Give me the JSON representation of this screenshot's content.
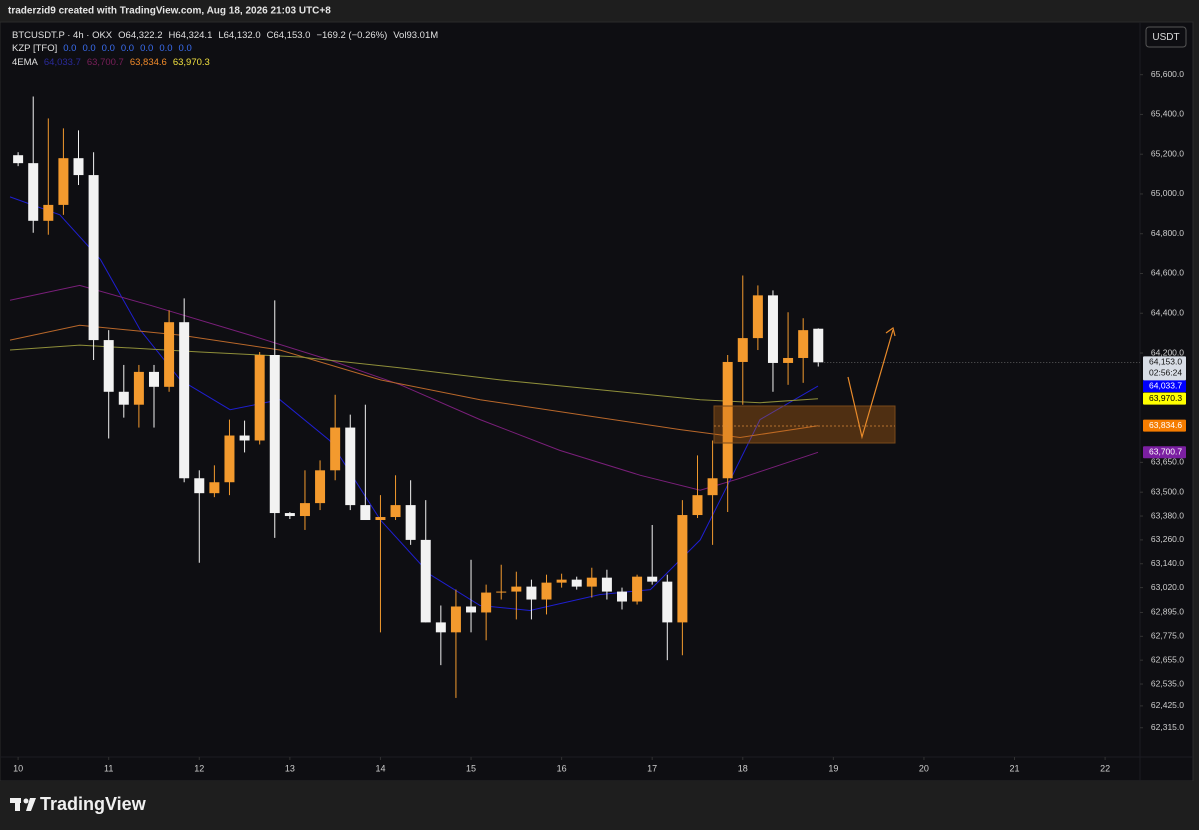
{
  "top_bar": {
    "text": "traderzid9 created with TradingView.com, Aug 18, 2026 21:03 UTC+8"
  },
  "currency_button": "USDT",
  "legend": {
    "symbol": "BTCUSDT.P · 4h · OKX",
    "ohlc": [
      "O64,322.2",
      "H64,324.1",
      "L64,132.0",
      "C64,153.0"
    ],
    "change": "−169.2 (−0.26%)",
    "volume": "Vol93.01M",
    "kzp_label": "KZP [TFO]",
    "kzp_values": [
      "0.0",
      "0.0",
      "0.0",
      "0.0",
      "0.0",
      "0.0",
      "0.0"
    ],
    "ema_label": "4EMA"
  },
  "footer": {
    "brand": "TradingView"
  },
  "chart_data": {
    "type": "candlestick",
    "up_color": "#f39a2e",
    "down_color": "#f2f2f2",
    "xlim": [
      9.8,
      22.33
    ],
    "xticks": [
      10,
      11,
      12,
      13,
      14,
      15,
      16,
      17,
      18,
      19,
      20,
      21,
      22
    ],
    "ylim": [
      62178,
      65865
    ],
    "yticks": [
      {
        "value": 65600,
        "label": "65,600.0"
      },
      {
        "value": 65400,
        "label": "65,400.0"
      },
      {
        "value": 65200,
        "label": "65,200.0"
      },
      {
        "value": 65000,
        "label": "65,000.0"
      },
      {
        "value": 64800,
        "label": "64,800.0"
      },
      {
        "value": 64600,
        "label": "64,600.0"
      },
      {
        "value": 64400,
        "label": "64,400.0"
      },
      {
        "value": 64200,
        "label": "64,200.0"
      },
      {
        "value": 63650,
        "label": "63,650.0"
      },
      {
        "value": 63500,
        "label": "63,500.0"
      },
      {
        "value": 63380,
        "label": "63,380.0"
      },
      {
        "value": 63260,
        "label": "63,260.0"
      },
      {
        "value": 63140,
        "label": "63,140.0"
      },
      {
        "value": 63020,
        "label": "63,020.0"
      },
      {
        "value": 62895,
        "label": "62,895.0"
      },
      {
        "value": 62775,
        "label": "62,775.0"
      },
      {
        "value": 62655,
        "label": "62,655.0"
      },
      {
        "value": 62535,
        "label": "62,535.0"
      },
      {
        "value": 62425,
        "label": "62,425.0"
      },
      {
        "value": 62315,
        "label": "62,315.0"
      }
    ],
    "grid": false,
    "x": [
      10,
      10.1667,
      10.3333,
      10.5,
      10.6667,
      10.8333,
      11,
      11.1667,
      11.3333,
      11.5,
      11.6667,
      11.8333,
      12,
      12.1667,
      12.3333,
      12.5,
      12.6667,
      12.8333,
      13,
      13.1667,
      13.3333,
      13.5,
      13.6667,
      13.8333,
      14,
      14.1667,
      14.3333,
      14.5,
      14.6667,
      14.8333,
      15,
      15.1667,
      15.3333,
      15.5,
      15.6667,
      15.8333,
      16,
      16.1667,
      16.3333,
      16.5,
      16.6667,
      16.8333,
      17,
      17.1667,
      17.3333,
      17.5,
      17.6667,
      17.8333,
      18,
      18.1667,
      18.3333,
      18.5,
      18.6667,
      18.8333
    ],
    "open": [
      65195,
      65155,
      64865,
      64945,
      65180,
      65095,
      64265,
      64005,
      63940,
      64105,
      64030,
      64355,
      63570,
      63495,
      63550,
      63785,
      63760,
      64190,
      63395,
      63380,
      63445,
      63610,
      63825,
      63435,
      63360,
      63375,
      63435,
      63260,
      62845,
      62795,
      62925,
      62895,
      62995,
      63000,
      63025,
      62960,
      63045,
      63060,
      63025,
      63070,
      63000,
      62950,
      63075,
      63050,
      62845,
      63385,
      63485,
      63570,
      64155,
      64275,
      64490,
      64150,
      64175,
      64322.2
    ],
    "high": [
      65210,
      65490,
      65380,
      65330,
      65320,
      65210,
      64315,
      64140,
      64140,
      64140,
      64415,
      64475,
      63610,
      63635,
      63865,
      63860,
      64205,
      64465,
      63400,
      63610,
      63660,
      63990,
      63890,
      63940,
      63485,
      63585,
      63560,
      63460,
      62930,
      63010,
      63160,
      63035,
      63135,
      63100,
      63060,
      63085,
      63090,
      63075,
      63120,
      63110,
      63020,
      63085,
      63335,
      63085,
      63460,
      63685,
      63760,
      64190,
      64590,
      64540,
      64515,
      64405,
      64375,
      64324.1
    ],
    "low": [
      65140,
      64805,
      64795,
      64895,
      65045,
      64165,
      63770,
      63875,
      63825,
      63825,
      64005,
      63550,
      63145,
      63475,
      63485,
      63700,
      63740,
      63270,
      63365,
      63310,
      63410,
      63560,
      63410,
      63360,
      62795,
      63360,
      63235,
      62845,
      62630,
      62465,
      62795,
      62755,
      62960,
      62860,
      62860,
      62885,
      63020,
      63010,
      62970,
      62960,
      62910,
      62935,
      63035,
      62655,
      62680,
      63370,
      63235,
      63400,
      63940,
      64215,
      64005,
      64040,
      64050,
      64132.0
    ],
    "close": [
      65155,
      64865,
      64945,
      65180,
      65095,
      64265,
      64005,
      63940,
      64105,
      64030,
      64355,
      63570,
      63495,
      63550,
      63785,
      63760,
      64190,
      63395,
      63380,
      63445,
      63610,
      63825,
      63435,
      63360,
      63375,
      63435,
      63260,
      62845,
      62795,
      62925,
      62895,
      62995,
      63000,
      63025,
      62960,
      63045,
      63060,
      63025,
      63070,
      63000,
      62950,
      63075,
      63050,
      62845,
      63385,
      63485,
      63570,
      64155,
      64275,
      64490,
      64150,
      64175,
      64315,
      64153.0
    ],
    "price_tag": {
      "value": 64153.0,
      "label": "64,153.0",
      "countdown": "02:56:24"
    },
    "lines": [
      {
        "color": "#1f1fd0",
        "tag_color": "#0000ff",
        "tag_text": "#ffffff",
        "x": [
          9.91,
          10.46,
          10.91,
          11.35,
          11.79,
          12.34,
          12.89,
          13.44,
          14.0,
          14.55,
          15.1,
          15.65,
          16.42,
          16.98,
          17.53,
          17.86,
          18.19,
          18.83
        ],
        "values": [
          64985,
          64895,
          64670,
          64315,
          64065,
          63915,
          63965,
          63760,
          63360,
          63085,
          62930,
          62905,
          62985,
          63010,
          63260,
          63560,
          63865,
          64033.7
        ],
        "value_label": "64,033.7"
      },
      {
        "color": "#7a1f7a",
        "tag_color": "#7b1fa2",
        "tag_text": "#ffffff",
        "x": [
          9.91,
          10.68,
          11.46,
          12.56,
          13.44,
          14.22,
          15.1,
          15.98,
          16.87,
          17.53,
          17.97,
          18.83
        ],
        "values": [
          64465,
          64540,
          64440,
          64290,
          64165,
          64040,
          63865,
          63710,
          63585,
          63510,
          63570,
          63700.7
        ],
        "value_label": "63,700.7"
      },
      {
        "color": "#b8672a",
        "tag_color": "#f57c00",
        "tag_text": "#ffffff",
        "x": [
          9.91,
          10.68,
          11.79,
          12.89,
          14.0,
          15.1,
          16.2,
          17.31,
          17.97,
          18.83
        ],
        "values": [
          64265,
          64340,
          64290,
          64215,
          64065,
          63965,
          63890,
          63815,
          63775,
          63834.6
        ],
        "value_label": "63,834.6"
      },
      {
        "color": "#8f8f3a",
        "tag_color": "#ffff00",
        "tag_text": "#000000",
        "x": [
          9.91,
          10.68,
          12.01,
          13.11,
          14.22,
          15.32,
          16.42,
          17.53,
          18.19,
          18.83
        ],
        "values": [
          64215,
          64240,
          64205,
          64180,
          64125,
          64065,
          64015,
          63965,
          63950,
          63970.3
        ],
        "value_label": "63,970.3"
      }
    ]
  }
}
